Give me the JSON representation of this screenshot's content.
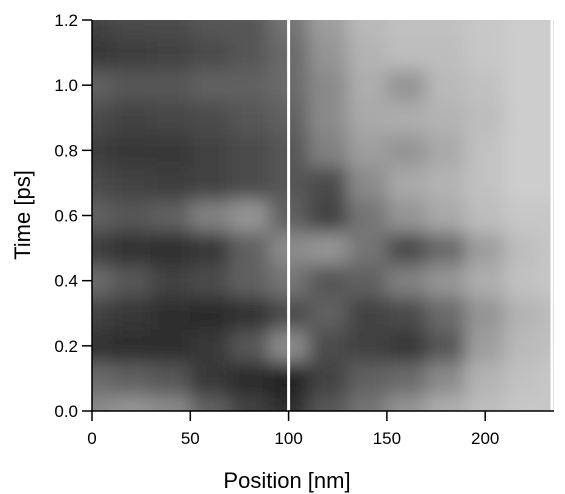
{
  "chart_data": {
    "type": "heatmap",
    "title": "",
    "xlabel": "Position [nm]",
    "ylabel": "Time [ps]",
    "xlim": [
      0,
      235
    ],
    "ylim": [
      0,
      1.2
    ],
    "x_ticks": [
      0,
      50,
      100,
      150,
      200
    ],
    "y_ticks": [
      0.0,
      0.2,
      0.4,
      0.6,
      0.8,
      1.0,
      1.2
    ],
    "x_tick_labels": [
      "0",
      "50",
      "100",
      "150",
      "200"
    ],
    "y_tick_labels": [
      "0.0",
      "0.2",
      "0.4",
      "0.6",
      "0.8",
      "1.0",
      "1.2"
    ],
    "grid": false,
    "colormap": "grayscale (dark = low, light = high)",
    "vertical_markers_x": [
      100,
      235
    ],
    "marker_color": "#ffffff",
    "x": [
      0,
      20,
      40,
      60,
      80,
      100,
      120,
      140,
      160,
      180,
      200,
      220,
      235
    ],
    "y": [
      0.0,
      0.1,
      0.2,
      0.3,
      0.4,
      0.5,
      0.6,
      0.7,
      0.8,
      0.9,
      1.0,
      1.1,
      1.2
    ],
    "z": [
      [
        0.55,
        0.6,
        0.55,
        0.35,
        0.2,
        0.1,
        0.3,
        0.45,
        0.6,
        0.72,
        0.8,
        0.85,
        0.85
      ],
      [
        0.4,
        0.35,
        0.3,
        0.15,
        0.08,
        0.05,
        0.2,
        0.35,
        0.4,
        0.55,
        0.75,
        0.82,
        0.85
      ],
      [
        0.12,
        0.1,
        0.1,
        0.15,
        0.3,
        0.55,
        0.25,
        0.2,
        0.15,
        0.3,
        0.65,
        0.78,
        0.82
      ],
      [
        0.2,
        0.15,
        0.1,
        0.08,
        0.12,
        0.25,
        0.35,
        0.2,
        0.25,
        0.4,
        0.6,
        0.75,
        0.8
      ],
      [
        0.4,
        0.3,
        0.2,
        0.25,
        0.35,
        0.45,
        0.3,
        0.35,
        0.5,
        0.6,
        0.72,
        0.82,
        0.85
      ],
      [
        0.18,
        0.12,
        0.1,
        0.15,
        0.35,
        0.55,
        0.6,
        0.45,
        0.25,
        0.4,
        0.65,
        0.8,
        0.85
      ],
      [
        0.35,
        0.3,
        0.35,
        0.5,
        0.6,
        0.35,
        0.2,
        0.45,
        0.6,
        0.7,
        0.8,
        0.85,
        0.85
      ],
      [
        0.25,
        0.2,
        0.18,
        0.2,
        0.25,
        0.3,
        0.25,
        0.55,
        0.7,
        0.75,
        0.82,
        0.88,
        0.88
      ],
      [
        0.18,
        0.15,
        0.15,
        0.2,
        0.25,
        0.3,
        0.5,
        0.65,
        0.6,
        0.7,
        0.82,
        0.88,
        0.88
      ],
      [
        0.25,
        0.2,
        0.22,
        0.25,
        0.3,
        0.35,
        0.55,
        0.7,
        0.72,
        0.75,
        0.8,
        0.88,
        0.88
      ],
      [
        0.35,
        0.3,
        0.3,
        0.35,
        0.35,
        0.4,
        0.55,
        0.72,
        0.6,
        0.78,
        0.82,
        0.88,
        0.88
      ],
      [
        0.15,
        0.18,
        0.2,
        0.25,
        0.3,
        0.4,
        0.6,
        0.75,
        0.8,
        0.8,
        0.85,
        0.88,
        0.88
      ],
      [
        0.2,
        0.25,
        0.25,
        0.3,
        0.3,
        0.45,
        0.65,
        0.78,
        0.82,
        0.82,
        0.85,
        0.88,
        0.88
      ]
    ]
  }
}
